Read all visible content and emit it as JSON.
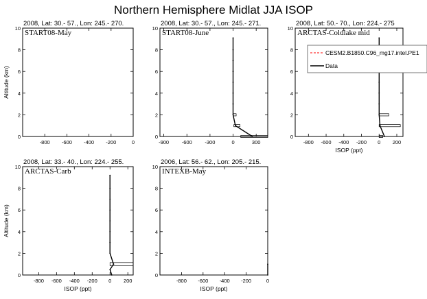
{
  "title": "Northern Hemisphere Midlat JJA ISOP",
  "legend": {
    "model_label": "CESM2.B1850.C96_mg17.intel.PE1",
    "obs_label": "Data",
    "model_color": "#ff0000",
    "obs_color": "#000000"
  },
  "chart_data": [
    {
      "type": "line",
      "subtitle": "2008, Lat:  30.- 57., Lon: 245.- 270.",
      "panel_label": "START08-May",
      "xlabel": "",
      "ylabel": "Altitude (km)",
      "xlim": [
        -1000,
        0
      ],
      "ylim": [
        0,
        10
      ],
      "xticks": [
        -800,
        -600,
        -400,
        -200,
        0
      ],
      "yticks": [
        0,
        2,
        4,
        6,
        8,
        10
      ],
      "series": [],
      "boxes": []
    },
    {
      "type": "line",
      "subtitle": "2008, Lat:  30.- 57., Lon: 245.- 271.",
      "panel_label": "START08-June",
      "xlabel": "",
      "ylabel": "",
      "xlim": [
        -950,
        450
      ],
      "ylim": [
        0,
        10
      ],
      "xticks": [
        -900,
        -600,
        -300,
        0,
        300
      ],
      "yticks": [
        0,
        2,
        4,
        6,
        8,
        10
      ],
      "series": [
        {
          "x": [
            250,
            30,
            0,
            0,
            0,
            0,
            0,
            0,
            0,
            0
          ],
          "y": [
            0,
            1,
            2,
            3,
            4,
            5,
            6,
            7,
            8,
            9.1
          ]
        }
      ],
      "boxes": [
        {
          "x0": 100,
          "x1": 450,
          "y0": -0.1,
          "y1": 0.1
        },
        {
          "x0": 10,
          "x1": 90,
          "y0": 0.9,
          "y1": 1.1
        },
        {
          "x0": 0,
          "x1": 40,
          "y0": 1.9,
          "y1": 2.1
        }
      ]
    },
    {
      "type": "line",
      "subtitle": "2008, Lat:  50.- 70., Lon: 224.- 275",
      "panel_label": "ARCTAS-Coldlake mid",
      "xlabel": "ISOP (ppt)",
      "ylabel": "",
      "xlim": [
        -950,
        270
      ],
      "ylim": [
        0,
        10
      ],
      "xticks": [
        -800,
        -600,
        -400,
        -200,
        0,
        200
      ],
      "yticks": [
        0,
        2,
        4,
        6,
        8,
        10
      ],
      "series": [
        {
          "x": [
            60,
            10,
            0,
            0,
            0,
            0,
            0,
            0,
            0,
            0
          ],
          "y": [
            0,
            1,
            2,
            3,
            4,
            5,
            6,
            7,
            8,
            9.1
          ]
        }
      ],
      "boxes": [
        {
          "x0": 0,
          "x1": 40,
          "y0": -0.1,
          "y1": 0.1
        },
        {
          "x0": 0,
          "x1": 240,
          "y0": 0.9,
          "y1": 1.1
        },
        {
          "x0": 0,
          "x1": 110,
          "y0": 1.9,
          "y1": 2.1
        }
      ]
    },
    {
      "type": "line",
      "subtitle": "2008, Lat:  33.- 40., Lon: 224.- 255.",
      "panel_label": "ARCTAS-Carb",
      "xlabel": "ISOP (ppt)",
      "ylabel": "Altitude (km)",
      "xlim": [
        -980,
        260
      ],
      "ylim": [
        0,
        10
      ],
      "xticks": [
        -800,
        -600,
        -400,
        -200,
        0,
        200
      ],
      "yticks": [
        0,
        2,
        4,
        6,
        8,
        10
      ],
      "series": [
        {
          "x": [
            20,
            0,
            40,
            0,
            0,
            0,
            0,
            0,
            0,
            0,
            0
          ],
          "y": [
            0,
            0.5,
            1,
            2,
            3,
            4,
            5,
            6,
            7,
            8,
            9.2
          ]
        }
      ],
      "boxes": [
        {
          "x0": 0,
          "x1": 260,
          "y0": 0.85,
          "y1": 1.15
        }
      ]
    },
    {
      "type": "line",
      "subtitle": "2006, Lat:  56.- 62., Lon: 205.- 215.",
      "panel_label": "INTEXB-May",
      "xlabel": "ISOP (ppt)",
      "ylabel": "",
      "xlim": [
        -1000,
        0
      ],
      "ylim": [
        0,
        10
      ],
      "xticks": [
        -800,
        -600,
        -400,
        -200,
        0
      ],
      "yticks": [
        0,
        2,
        4,
        6,
        8,
        10
      ],
      "series": [
        {
          "x": [
            0,
            0
          ],
          "y": [
            0,
            1
          ]
        }
      ],
      "boxes": []
    }
  ]
}
